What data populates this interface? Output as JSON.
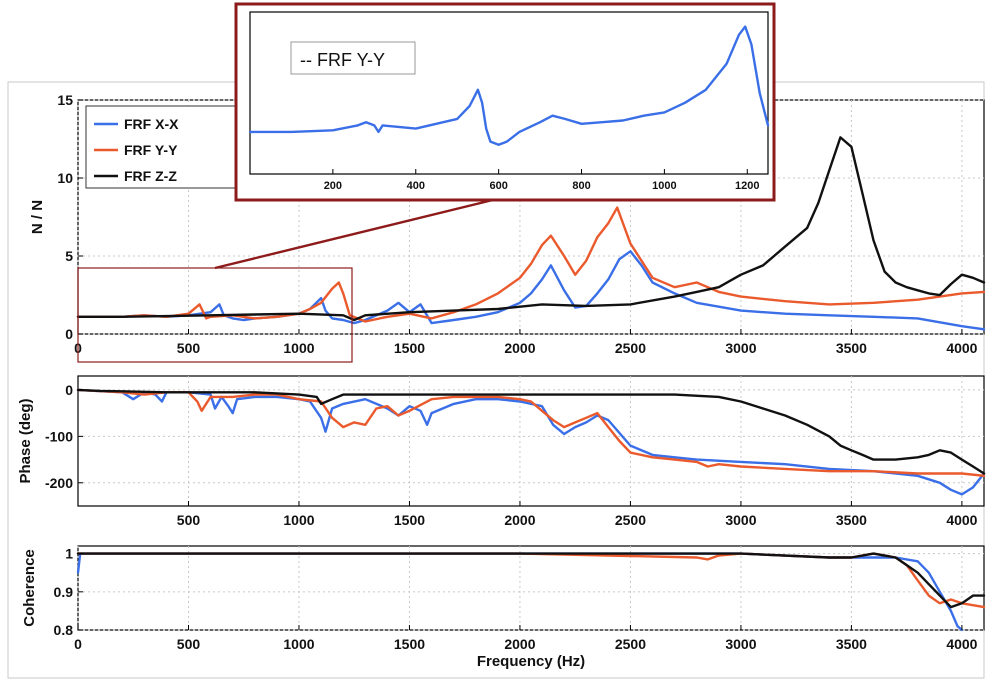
{
  "colors": {
    "x": "#3a6fe8",
    "y": "#ea5a2c",
    "z": "#111111",
    "box": "#8e1b1b",
    "grid": "#c8c8c8"
  },
  "chart_data": [
    {
      "type": "line",
      "title": "",
      "xlabel": "",
      "ylabel": "N / N",
      "xlim": [
        0,
        4100
      ],
      "ylim": [
        0,
        15
      ],
      "xticks": [
        "0",
        "500",
        "1000",
        "1500",
        "2000",
        "2500",
        "3000",
        "3500",
        "4000"
      ],
      "yticks": [
        "0",
        "5",
        "10",
        "15"
      ],
      "grid": true,
      "legend": "top-left",
      "series": [
        {
          "name": "FRF X-X",
          "color": "x",
          "x": [
            0,
            100,
            200,
            300,
            400,
            500,
            600,
            640,
            660,
            700,
            750,
            800,
            900,
            1000,
            1050,
            1100,
            1120,
            1150,
            1200,
            1250,
            1300,
            1400,
            1450,
            1500,
            1550,
            1600,
            1700,
            1800,
            1900,
            2000,
            2050,
            2100,
            2140,
            2200,
            2250,
            2300,
            2350,
            2400,
            2450,
            2500,
            2550,
            2600,
            2700,
            2800,
            3000,
            3200,
            3400,
            3600,
            3800,
            4000,
            4100
          ],
          "y": [
            1.1,
            1.1,
            1.1,
            1.2,
            1.1,
            1.2,
            1.4,
            1.9,
            1.2,
            1.0,
            0.9,
            1.0,
            1.1,
            1.3,
            1.6,
            2.3,
            1.5,
            1.0,
            0.9,
            0.7,
            0.9,
            1.5,
            2.0,
            1.4,
            1.9,
            0.7,
            0.9,
            1.1,
            1.4,
            2.0,
            2.6,
            3.5,
            4.4,
            2.8,
            1.7,
            1.8,
            2.6,
            3.5,
            4.8,
            5.3,
            4.4,
            3.3,
            2.6,
            2.0,
            1.5,
            1.3,
            1.2,
            1.1,
            1.0,
            0.5,
            0.3
          ]
        },
        {
          "name": "FRF Y-Y",
          "color": "y",
          "x": [
            0,
            100,
            200,
            300,
            400,
            500,
            550,
            580,
            600,
            700,
            800,
            900,
            1000,
            1050,
            1100,
            1150,
            1180,
            1200,
            1230,
            1300,
            1400,
            1500,
            1600,
            1700,
            1800,
            1900,
            2000,
            2050,
            2100,
            2140,
            2200,
            2250,
            2300,
            2350,
            2400,
            2440,
            2500,
            2600,
            2700,
            2800,
            2850,
            2900,
            3000,
            3200,
            3400,
            3600,
            3800,
            4000,
            4100
          ],
          "y": [
            1.1,
            1.1,
            1.1,
            1.2,
            1.1,
            1.3,
            1.9,
            1.0,
            1.1,
            1.2,
            1.0,
            1.1,
            1.3,
            1.6,
            2.0,
            2.9,
            3.3,
            2.6,
            1.2,
            0.8,
            1.1,
            1.3,
            1.0,
            1.4,
            1.9,
            2.6,
            3.6,
            4.5,
            5.7,
            6.3,
            5.0,
            3.8,
            4.7,
            6.2,
            7.1,
            8.1,
            5.8,
            3.6,
            3.0,
            3.3,
            3.0,
            2.7,
            2.4,
            2.1,
            1.9,
            2.0,
            2.2,
            2.6,
            2.7
          ]
        },
        {
          "name": "FRF Z-Z",
          "color": "z",
          "x": [
            0,
            200,
            400,
            600,
            800,
            1000,
            1200,
            1250,
            1300,
            1500,
            1700,
            1900,
            2100,
            2300,
            2500,
            2700,
            2800,
            2900,
            3000,
            3100,
            3200,
            3300,
            3350,
            3400,
            3450,
            3500,
            3550,
            3600,
            3650,
            3700,
            3750,
            3800,
            3850,
            3900,
            3950,
            4000,
            4050,
            4100
          ],
          "y": [
            1.1,
            1.1,
            1.15,
            1.2,
            1.25,
            1.3,
            1.2,
            0.9,
            1.2,
            1.4,
            1.5,
            1.6,
            1.9,
            1.8,
            1.9,
            2.4,
            2.7,
            3.0,
            3.8,
            4.4,
            5.6,
            6.8,
            8.4,
            10.5,
            12.6,
            12.0,
            9.0,
            6.0,
            4.0,
            3.3,
            3.0,
            2.8,
            2.6,
            2.5,
            3.2,
            3.8,
            3.6,
            3.3
          ]
        }
      ]
    },
    {
      "type": "line",
      "title": "",
      "xlabel": "",
      "ylabel": "Phase (deg)",
      "xlim": [
        0,
        4100
      ],
      "ylim": [
        -250,
        30
      ],
      "xticks": [
        "500",
        "1000",
        "1500",
        "2000",
        "2500",
        "3000",
        "3500",
        "4000"
      ],
      "yticks": [
        "0",
        "-100",
        "-200"
      ],
      "grid": true,
      "series": [
        {
          "name": "FRF X-X",
          "color": "x",
          "x": [
            0,
            200,
            250,
            300,
            350,
            380,
            400,
            500,
            600,
            620,
            650,
            680,
            700,
            720,
            800,
            900,
            1000,
            1050,
            1100,
            1120,
            1150,
            1200,
            1300,
            1400,
            1450,
            1500,
            1550,
            1580,
            1600,
            1700,
            1800,
            1900,
            2000,
            2100,
            2150,
            2200,
            2250,
            2300,
            2350,
            2400,
            2500,
            2600,
            2700,
            2800,
            3000,
            3200,
            3400,
            3600,
            3800,
            3900,
            3950,
            4000,
            4050,
            4100
          ],
          "y": [
            0,
            -5,
            -20,
            -5,
            -10,
            -25,
            -5,
            -5,
            -10,
            -40,
            -15,
            -35,
            -50,
            -20,
            -15,
            -15,
            -20,
            -25,
            -60,
            -90,
            -40,
            -30,
            -20,
            -40,
            -55,
            -35,
            -45,
            -75,
            -50,
            -30,
            -20,
            -20,
            -25,
            -35,
            -75,
            -95,
            -80,
            -70,
            -55,
            -65,
            -120,
            -140,
            -145,
            -150,
            -155,
            -160,
            -170,
            -175,
            -185,
            -200,
            -215,
            -225,
            -210,
            -180
          ]
        },
        {
          "name": "FRF Y-Y",
          "color": "y",
          "x": [
            0,
            200,
            300,
            400,
            500,
            540,
            560,
            600,
            700,
            800,
            900,
            1000,
            1100,
            1150,
            1200,
            1250,
            1300,
            1350,
            1400,
            1450,
            1500,
            1600,
            1700,
            1800,
            1900,
            2000,
            2050,
            2100,
            2150,
            2200,
            2250,
            2300,
            2350,
            2400,
            2450,
            2500,
            2600,
            2700,
            2800,
            2850,
            2900,
            3000,
            3200,
            3400,
            3600,
            3800,
            4000,
            4100
          ],
          "y": [
            0,
            -5,
            -10,
            -5,
            -5,
            -25,
            -45,
            -15,
            -15,
            -10,
            -10,
            -20,
            -25,
            -60,
            -80,
            -70,
            -75,
            -40,
            -35,
            -55,
            -45,
            -20,
            -15,
            -15,
            -15,
            -20,
            -25,
            -45,
            -65,
            -80,
            -70,
            -60,
            -50,
            -80,
            -110,
            -135,
            -145,
            -150,
            -155,
            -165,
            -160,
            -165,
            -170,
            -175,
            -175,
            -180,
            -180,
            -185
          ]
        },
        {
          "name": "FRF Z-Z",
          "color": "z",
          "x": [
            0,
            100,
            200,
            400,
            600,
            800,
            1000,
            1080,
            1100,
            1150,
            1200,
            1300,
            1500,
            1700,
            1900,
            2100,
            2300,
            2500,
            2700,
            2900,
            3000,
            3100,
            3200,
            3300,
            3400,
            3450,
            3500,
            3550,
            3600,
            3700,
            3800,
            3850,
            3900,
            3950,
            4000,
            4050,
            4100
          ],
          "y": [
            0,
            -2,
            -3,
            -5,
            -5,
            -5,
            -10,
            -15,
            -30,
            -20,
            -10,
            -10,
            -10,
            -10,
            -10,
            -10,
            -10,
            -10,
            -10,
            -15,
            -25,
            -40,
            -55,
            -75,
            -100,
            -120,
            -130,
            -140,
            -150,
            -150,
            -145,
            -140,
            -130,
            -135,
            -150,
            -165,
            -180
          ]
        }
      ]
    },
    {
      "type": "line",
      "title": "",
      "xlabel": "Frequency (Hz)",
      "ylabel": "Coherence",
      "xlim": [
        0,
        4100
      ],
      "ylim": [
        0.8,
        1.02
      ],
      "xticks": [
        "0",
        "500",
        "1000",
        "1500",
        "2000",
        "2500",
        "3000",
        "3500",
        "4000"
      ],
      "yticks": [
        "0.8",
        "0.9",
        "1"
      ],
      "grid": true,
      "series": [
        {
          "name": "FRF X-X",
          "color": "x",
          "x": [
            0,
            10,
            50,
            500,
            1000,
            1500,
            2000,
            2500,
            2800,
            3000,
            3400,
            3500,
            3600,
            3700,
            3800,
            3850,
            3900,
            3950,
            3980,
            4000
          ],
          "y": [
            0.95,
            1.0,
            1.0,
            1.0,
            1.0,
            1.0,
            1.0,
            1.0,
            1.0,
            1.0,
            0.99,
            0.99,
            0.99,
            0.99,
            0.98,
            0.95,
            0.9,
            0.85,
            0.81,
            0.78
          ]
        },
        {
          "name": "FRF Y-Y",
          "color": "y",
          "x": [
            0,
            500,
            1000,
            1500,
            2000,
            2400,
            2800,
            2850,
            2900,
            3000,
            3400,
            3500,
            3600,
            3700,
            3750,
            3800,
            3850,
            3900,
            3950,
            4000,
            4050,
            4100
          ],
          "y": [
            1.0,
            1.0,
            1.0,
            1.0,
            1.0,
            0.995,
            0.99,
            0.985,
            0.995,
            1.0,
            0.99,
            0.99,
            1.0,
            0.99,
            0.97,
            0.93,
            0.89,
            0.87,
            0.88,
            0.87,
            0.865,
            0.86
          ]
        },
        {
          "name": "FRF Z-Z",
          "color": "z",
          "x": [
            0,
            500,
            1000,
            1500,
            2000,
            2500,
            3000,
            3400,
            3500,
            3600,
            3700,
            3750,
            3800,
            3850,
            3900,
            3950,
            4000,
            4050,
            4100
          ],
          "y": [
            1.0,
            1.0,
            1.0,
            1.0,
            1.0,
            1.0,
            1.0,
            0.99,
            0.99,
            1.0,
            0.99,
            0.97,
            0.95,
            0.92,
            0.89,
            0.86,
            0.87,
            0.89,
            0.89
          ]
        }
      ]
    },
    {
      "type": "line",
      "title": "",
      "xlim": [
        0,
        1250
      ],
      "ylim": [
        0,
        10
      ],
      "xticks": [
        "200",
        "400",
        "600",
        "800",
        "1000",
        "1200"
      ],
      "legend": "top-left",
      "series": [
        {
          "name": "-- FRF Y-Y",
          "color": "x",
          "x": [
            0,
            100,
            200,
            260,
            280,
            300,
            310,
            320,
            400,
            500,
            530,
            550,
            560,
            570,
            580,
            600,
            620,
            650,
            700,
            730,
            760,
            800,
            850,
            900,
            950,
            1000,
            1050,
            1100,
            1150,
            1180,
            1195,
            1210,
            1230,
            1250
          ],
          "y": [
            2.6,
            2.6,
            2.7,
            3.0,
            3.2,
            3.0,
            2.6,
            3.0,
            2.8,
            3.4,
            4.2,
            5.2,
            4.4,
            2.8,
            2.0,
            1.8,
            2.0,
            2.6,
            3.2,
            3.6,
            3.4,
            3.1,
            3.2,
            3.3,
            3.6,
            3.8,
            4.4,
            5.2,
            6.8,
            8.6,
            9.1,
            8.0,
            5.0,
            3.0
          ]
        }
      ]
    }
  ]
}
